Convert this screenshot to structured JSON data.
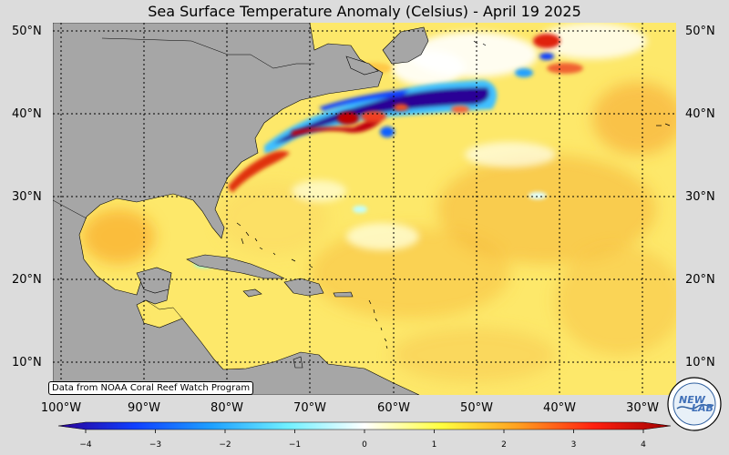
{
  "title": "Sea Surface Temperature Anomaly (Celsius) - April 19 2025",
  "source_note": "Data from NOAA Coral Reef Watch Program",
  "latitude_labels": [
    "50°N",
    "40°N",
    "30°N",
    "20°N",
    "10°N"
  ],
  "longitude_labels": [
    "100°W",
    "90°W",
    "80°W",
    "70°W",
    "60°W",
    "50°W",
    "40°W",
    "30°W"
  ],
  "colorbar": {
    "min": -4,
    "max": 4,
    "ticks": [
      "−4",
      "−3",
      "−2",
      "−1",
      "0",
      "1",
      "2",
      "3",
      "4"
    ],
    "colors": [
      "#2a0096",
      "#1040ff",
      "#1ea0ff",
      "#70f0ff",
      "#ffffff",
      "#ffff40",
      "#ffa020",
      "#ff2010",
      "#a00000"
    ]
  },
  "colors": {
    "land": "#a6a6a6",
    "background": "#dcdcdc",
    "ocean_base": "#fde86a"
  },
  "logo": {
    "text_top": "NEW",
    "text_bottom": "LAB"
  }
}
